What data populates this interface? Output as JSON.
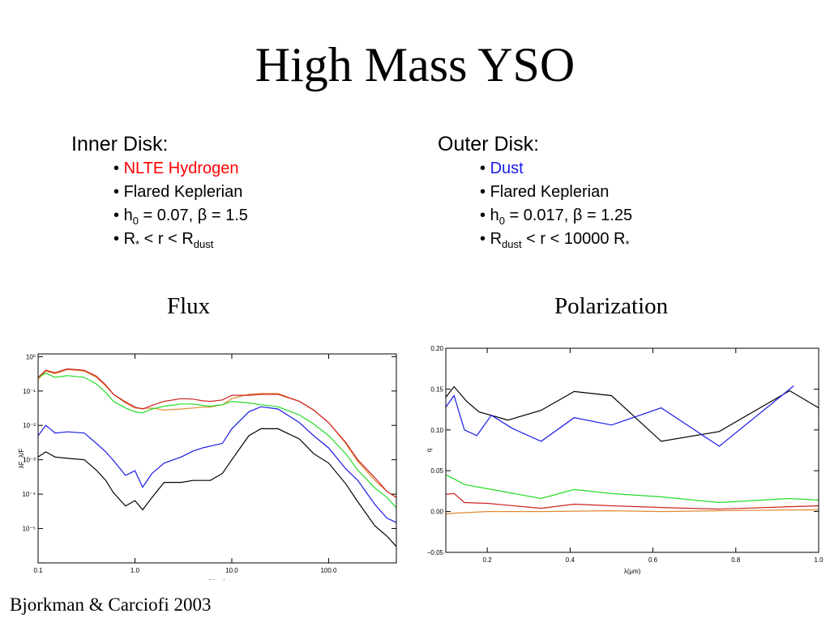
{
  "slide": {
    "title": "High Mass YSO",
    "credit": "Bjorkman & Carciofi 2003"
  },
  "inner_disk": {
    "heading": "Inner Disk:",
    "bullet": "•",
    "item1": "NLTE Hydrogen",
    "item2": "Flared Keplerian",
    "h_sym": "h",
    "h_sub": "0",
    "h_val": " = 0.07, ",
    "beta": "β",
    "beta_val": " = 1.5",
    "r_pre": "R",
    "star": "*",
    "r_mid": " < r < R",
    "r_sub": "dust"
  },
  "outer_disk": {
    "heading": "Outer Disk:",
    "bullet": "•",
    "item1": "Dust",
    "item2": "Flared Keplerian",
    "h_sym": "h",
    "h_sub": "0",
    "h_val": " = 0.017, ",
    "beta": "β",
    "beta_val": " = 1.25",
    "r_pre": "R",
    "r_sub": "dust",
    "r_mid": " < r < 10000 R",
    "star": "*"
  },
  "plot_titles": {
    "flux": "Flux",
    "polarization": "Polarization"
  },
  "colors": {
    "red": "#ff0000",
    "blue": "#1a1ae6",
    "black": "#000000",
    "green": "#22dd22",
    "orange": "#e08a30",
    "darkred": "#cc2222"
  },
  "chart_data": [
    {
      "id": "flux",
      "type": "line",
      "xlabel": "λ(μm)",
      "ylabel": "λF_λ/F",
      "xscale": "log",
      "yscale": "log",
      "xlim": [
        0.1,
        500
      ],
      "ylim": [
        1e-06,
        1.2
      ],
      "xticks": [
        {
          "v": 0.1,
          "label": "0.1"
        },
        {
          "v": 1,
          "label": "1.0"
        },
        {
          "v": 10,
          "label": "10.0"
        },
        {
          "v": 100,
          "label": "100.0"
        }
      ],
      "yticks": [
        {
          "v": 1,
          "label": "10⁰"
        },
        {
          "v": 0.1,
          "label": "10⁻¹"
        },
        {
          "v": 0.01,
          "label": "10⁻²"
        },
        {
          "v": 0.001,
          "label": "10⁻³"
        },
        {
          "v": 0.0001,
          "label": "10⁻⁴"
        },
        {
          "v": 1e-05,
          "label": "10⁻⁵"
        }
      ],
      "series": [
        {
          "color": "#e08a30",
          "x": [
            0.1,
            0.12,
            0.15,
            0.2,
            0.3,
            0.4,
            0.5,
            0.6,
            0.8,
            1.0,
            1.2,
            1.5,
            2,
            3,
            4,
            5,
            6,
            8,
            10,
            15,
            20,
            30,
            50,
            70,
            100,
            150,
            200,
            300,
            400,
            500
          ],
          "y": [
            0.22,
            0.38,
            0.32,
            0.42,
            0.38,
            0.25,
            0.14,
            0.08,
            0.045,
            0.032,
            0.031,
            0.032,
            0.028,
            0.03,
            0.032,
            0.034,
            0.034,
            0.04,
            0.06,
            0.08,
            0.085,
            0.085,
            0.05,
            0.028,
            0.012,
            0.003,
            0.0009,
            0.00025,
            0.00012,
            8e-05
          ]
        },
        {
          "color": "#22dd22",
          "x": [
            0.1,
            0.12,
            0.15,
            0.2,
            0.3,
            0.4,
            0.5,
            0.6,
            0.8,
            1.0,
            1.2,
            1.5,
            2,
            3,
            4,
            5,
            6,
            8,
            10,
            15,
            20,
            30,
            50,
            70,
            100,
            150,
            200,
            300,
            400,
            500
          ],
          "y": [
            0.25,
            0.33,
            0.25,
            0.28,
            0.25,
            0.16,
            0.09,
            0.05,
            0.032,
            0.025,
            0.023,
            0.03,
            0.036,
            0.042,
            0.042,
            0.038,
            0.036,
            0.04,
            0.05,
            0.045,
            0.04,
            0.035,
            0.02,
            0.011,
            0.005,
            0.0015,
            0.0005,
            0.00015,
            8e-05,
            4e-05
          ]
        },
        {
          "color": "#cc2222",
          "x": [
            0.1,
            0.12,
            0.15,
            0.2,
            0.3,
            0.4,
            0.5,
            0.6,
            0.8,
            1.0,
            1.2,
            1.5,
            2,
            3,
            4,
            5,
            6,
            8,
            10,
            15,
            20,
            30,
            50,
            70,
            100,
            150,
            200,
            300,
            400,
            500
          ],
          "y": [
            0.25,
            0.4,
            0.34,
            0.44,
            0.4,
            0.27,
            0.15,
            0.08,
            0.048,
            0.034,
            0.03,
            0.038,
            0.05,
            0.06,
            0.058,
            0.052,
            0.05,
            0.055,
            0.075,
            0.075,
            0.08,
            0.08,
            0.05,
            0.028,
            0.012,
            0.0032,
            0.001,
            0.0003,
            0.00012,
            8e-05
          ]
        },
        {
          "color": "#1a1ae6",
          "x": [
            0.1,
            0.12,
            0.15,
            0.2,
            0.3,
            0.4,
            0.5,
            0.6,
            0.8,
            1.0,
            1.2,
            1.5,
            2,
            3,
            4,
            5,
            6,
            8,
            10,
            15,
            20,
            30,
            50,
            70,
            100,
            150,
            200,
            300,
            400,
            500
          ],
          "y": [
            0.005,
            0.01,
            0.006,
            0.0065,
            0.006,
            0.003,
            0.0017,
            0.00095,
            0.00035,
            0.00048,
            0.00016,
            0.0004,
            0.0008,
            0.0012,
            0.0018,
            0.0022,
            0.0025,
            0.003,
            0.008,
            0.025,
            0.035,
            0.03,
            0.012,
            0.005,
            0.0022,
            0.00055,
            0.00025,
            5e-05,
            2e-05,
            1.5e-05
          ]
        },
        {
          "color": "#000000",
          "x": [
            0.1,
            0.12,
            0.15,
            0.2,
            0.3,
            0.4,
            0.5,
            0.6,
            0.8,
            1.0,
            1.2,
            1.5,
            2,
            3,
            4,
            5,
            6,
            8,
            10,
            15,
            20,
            30,
            50,
            70,
            100,
            150,
            200,
            300,
            400,
            500
          ],
          "y": [
            0.0012,
            0.0017,
            0.0012,
            0.0011,
            0.001,
            0.0005,
            0.00025,
            0.00011,
            4.5e-05,
            6.5e-05,
            3.5e-05,
            8e-05,
            0.00022,
            0.00022,
            0.00025,
            0.00025,
            0.00025,
            0.0004,
            0.001,
            0.005,
            0.008,
            0.008,
            0.004,
            0.0015,
            0.0008,
            0.0002,
            6e-05,
            1.2e-05,
            6e-06,
            3e-06
          ]
        }
      ]
    },
    {
      "id": "polarization",
      "type": "line",
      "xlabel": "λ(μm)",
      "ylabel": "q",
      "xlim": [
        0.1,
        1.0
      ],
      "ylim": [
        -0.05,
        0.2
      ],
      "xticks": [
        {
          "v": 0.2,
          "label": "0.2"
        },
        {
          "v": 0.4,
          "label": "0.4"
        },
        {
          "v": 0.6,
          "label": "0.6"
        },
        {
          "v": 0.8,
          "label": "0.8"
        },
        {
          "v": 1.0,
          "label": "1.0"
        }
      ],
      "yticks": [
        {
          "v": 0.2,
          "label": "0.20"
        },
        {
          "v": 0.15,
          "label": "0.15"
        },
        {
          "v": 0.1,
          "label": "0.10"
        },
        {
          "v": 0.05,
          "label": "0.05"
        },
        {
          "v": 0.0,
          "label": "0.00"
        },
        {
          "v": -0.05,
          "label": "−0.05"
        }
      ],
      "series": [
        {
          "color": "#000000",
          "x": [
            0.1,
            0.12,
            0.15,
            0.18,
            0.25,
            0.33,
            0.41,
            0.5,
            0.62,
            0.76,
            0.93,
            1.0
          ],
          "y": [
            0.14,
            0.153,
            0.135,
            0.122,
            0.112,
            0.124,
            0.147,
            0.142,
            0.086,
            0.098,
            0.148,
            0.127
          ]
        },
        {
          "color": "#1a1ae6",
          "x": [
            0.1,
            0.12,
            0.145,
            0.175,
            0.21,
            0.26,
            0.33,
            0.41,
            0.5,
            0.62,
            0.76,
            0.94
          ],
          "y": [
            0.128,
            0.142,
            0.1,
            0.093,
            0.118,
            0.102,
            0.086,
            0.115,
            0.106,
            0.127,
            0.08,
            0.154
          ]
        },
        {
          "color": "#22dd22",
          "x": [
            0.1,
            0.12,
            0.145,
            0.2,
            0.33,
            0.41,
            0.5,
            0.62,
            0.76,
            0.93,
            1.0
          ],
          "y": [
            0.045,
            0.04,
            0.033,
            0.028,
            0.016,
            0.027,
            0.022,
            0.018,
            0.011,
            0.016,
            0.014
          ]
        },
        {
          "color": "#cc2222",
          "x": [
            0.1,
            0.12,
            0.145,
            0.2,
            0.33,
            0.41,
            0.5,
            0.62,
            0.76,
            0.93,
            1.0
          ],
          "y": [
            0.021,
            0.022,
            0.011,
            0.01,
            0.004,
            0.009,
            0.007,
            0.005,
            0.003,
            0.006,
            0.007
          ]
        },
        {
          "color": "#e08a30",
          "x": [
            0.1,
            0.12,
            0.2,
            0.33,
            0.5,
            0.62,
            0.76,
            0.93,
            1.0
          ],
          "y": [
            -0.003,
            -0.002,
            0.0,
            0.0,
            0.001,
            0.0,
            0.001,
            0.002,
            0.002
          ]
        }
      ]
    }
  ]
}
